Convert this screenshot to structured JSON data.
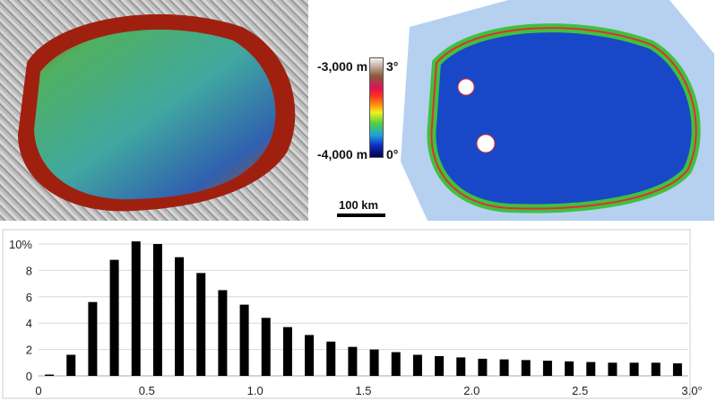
{
  "legend": {
    "elevation_top": "-3,000 m",
    "elevation_bottom": "-4,000 m",
    "slope_top": "3°",
    "slope_bottom": "0°",
    "scale": "100 km"
  },
  "chart_data": {
    "type": "bar",
    "title": "",
    "xlabel": "",
    "ylabel": "",
    "x": [
      0.05,
      0.15,
      0.25,
      0.35,
      0.45,
      0.55,
      0.65,
      0.75,
      0.85,
      0.95,
      1.05,
      1.15,
      1.25,
      1.35,
      1.45,
      1.55,
      1.65,
      1.75,
      1.85,
      1.95,
      2.05,
      2.15,
      2.25,
      2.35,
      2.45,
      2.55,
      2.65,
      2.75,
      2.85,
      2.95
    ],
    "values": [
      0.1,
      1.6,
      5.6,
      8.8,
      10.2,
      10.0,
      9.0,
      7.8,
      6.5,
      5.4,
      4.4,
      3.7,
      3.1,
      2.6,
      2.2,
      2.0,
      1.8,
      1.6,
      1.5,
      1.4,
      1.3,
      1.25,
      1.2,
      1.15,
      1.1,
      1.05,
      1.0,
      1.0,
      1.0,
      0.95
    ],
    "xlim": [
      0,
      3.0
    ],
    "ylim": [
      0,
      10.5
    ],
    "xticks": [
      "0",
      "0.5",
      "1.0",
      "1.5",
      "2.0",
      "2.5",
      "3.0°"
    ],
    "yticks": [
      "0",
      "2",
      "4",
      "6",
      "8",
      "10%"
    ],
    "grid": true
  }
}
